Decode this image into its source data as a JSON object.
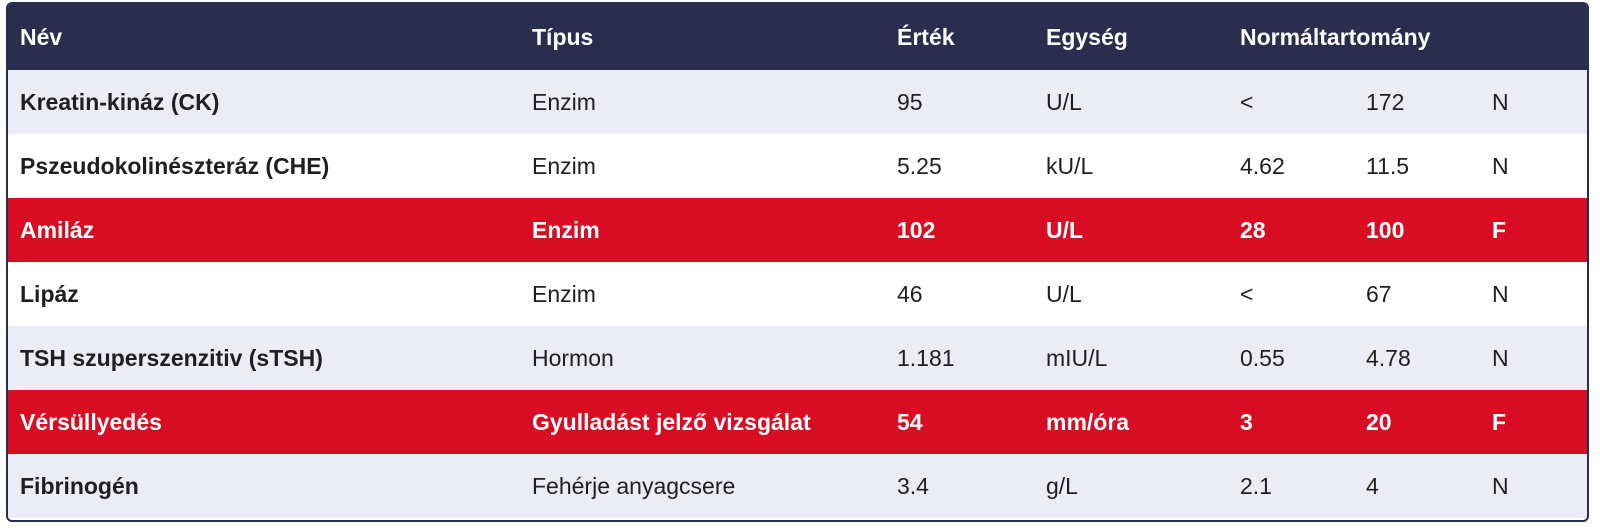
{
  "headers": {
    "name": "Név",
    "type": "Típus",
    "value": "Érték",
    "unit": "Egység",
    "range": "Normáltartomány"
  },
  "rows": [
    {
      "name": "Kreatin-kináz (CK)",
      "type": "Enzim",
      "value": "95",
      "unit": "U/L",
      "low": "<",
      "high": "172",
      "flag": "N",
      "abnormal": false
    },
    {
      "name": "Pszeudokolinészteráz (CHE)",
      "type": "Enzim",
      "value": "5.25",
      "unit": "kU/L",
      "low": "4.62",
      "high": "11.5",
      "flag": "N",
      "abnormal": false
    },
    {
      "name": "Amiláz",
      "type": "Enzim",
      "value": "102",
      "unit": "U/L",
      "low": "28",
      "high": "100",
      "flag": "F",
      "abnormal": true
    },
    {
      "name": "Lipáz",
      "type": "Enzim",
      "value": "46",
      "unit": "U/L",
      "low": "<",
      "high": "67",
      "flag": "N",
      "abnormal": false
    },
    {
      "name": "TSH szuperszenzitiv (sTSH)",
      "type": "Hormon",
      "value": "1.181",
      "unit": "mIU/L",
      "low": "0.55",
      "high": "4.78",
      "flag": "N",
      "abnormal": false
    },
    {
      "name": "Vérsüllyedés",
      "type": "Gyulladást jelző vizsgálat",
      "value": "54",
      "unit": "mm/óra",
      "low": "3",
      "high": "20",
      "flag": "F",
      "abnormal": true
    },
    {
      "name": "Fibrinogén",
      "type": "Fehérje anyagcsere",
      "value": "3.4",
      "unit": "g/L",
      "low": "2.1",
      "high": "4",
      "flag": "N",
      "abnormal": false
    }
  ],
  "colors": {
    "header_bg": "#2b2d4f",
    "abnormal_bg": "#d80d23",
    "stripe_bg": "#ebecf5"
  }
}
